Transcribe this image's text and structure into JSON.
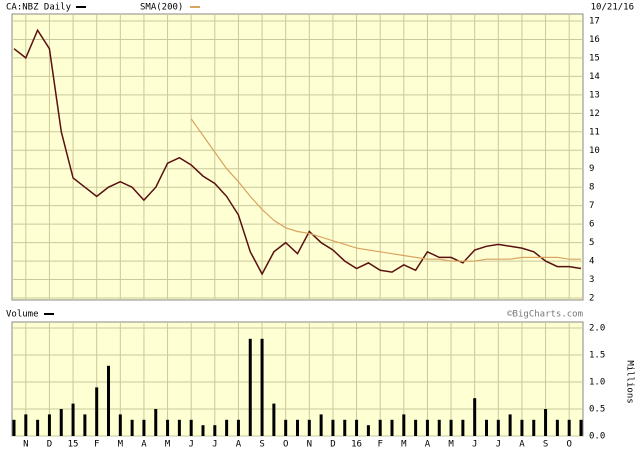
{
  "chart_data": [
    {
      "type": "line",
      "date": "10/21/16",
      "ylim": [
        2,
        17
      ],
      "yticks": [
        2,
        3,
        4,
        5,
        6,
        7,
        8,
        9,
        10,
        11,
        12,
        13,
        14,
        15,
        16,
        17
      ],
      "grid": true,
      "series": [
        {
          "name": "CA:NBZ Daily",
          "color": "#5a1010",
          "values": [
            15.5,
            15.0,
            16.5,
            15.5,
            11.0,
            8.5,
            8.0,
            7.5,
            8.0,
            8.3,
            8.0,
            7.3,
            8.0,
            9.3,
            9.6,
            9.2,
            8.6,
            8.2,
            7.5,
            6.5,
            4.5,
            3.3,
            4.5,
            5.0,
            4.4,
            5.6,
            5.0,
            4.6,
            4.0,
            3.6,
            3.9,
            3.5,
            3.4,
            3.8,
            3.5,
            4.5,
            4.2,
            4.2,
            3.9,
            4.6,
            4.8,
            4.9,
            4.8,
            4.7,
            4.5,
            4.0,
            3.7,
            3.7,
            3.6
          ]
        },
        {
          "name": "SMA(200)",
          "color": "#d9a460",
          "values": [
            null,
            null,
            null,
            null,
            null,
            null,
            null,
            null,
            null,
            null,
            null,
            null,
            null,
            null,
            null,
            11.7,
            10.8,
            9.9,
            9.0,
            8.3,
            7.5,
            6.8,
            6.2,
            5.8,
            5.6,
            5.5,
            5.3,
            5.1,
            4.9,
            4.7,
            4.6,
            4.5,
            4.4,
            4.3,
            4.2,
            4.1,
            4.1,
            4.0,
            4.0,
            4.0,
            4.1,
            4.1,
            4.1,
            4.2,
            4.2,
            4.2,
            4.2,
            4.1,
            4.1
          ]
        }
      ]
    },
    {
      "type": "bar",
      "title": "Volume",
      "source": "©BigCharts.com",
      "y_label": "Millions",
      "color": "#000000",
      "ylim": [
        0,
        2
      ],
      "yticks": [
        {
          "value": 0,
          "label": "0.0"
        },
        {
          "value": 0.5,
          "label": "0.5"
        },
        {
          "value": 1,
          "label": "1.0"
        },
        {
          "value": 1.5,
          "label": "1.5"
        },
        {
          "value": 2,
          "label": "2.0"
        }
      ],
      "grid": true,
      "categories": [
        null,
        "N",
        null,
        "D",
        null,
        "15",
        null,
        "F",
        null,
        "M",
        null,
        "A",
        null,
        "M",
        null,
        "J",
        null,
        "J",
        null,
        "A",
        null,
        "S",
        null,
        "O",
        null,
        "N",
        null,
        "D",
        null,
        "16",
        null,
        "F",
        null,
        "M",
        null,
        "A",
        null,
        "M",
        null,
        "J",
        null,
        "J",
        null,
        "A",
        null,
        "S",
        null,
        "O",
        null
      ],
      "values": [
        0.3,
        0.4,
        0.3,
        0.4,
        0.5,
        0.6,
        0.4,
        0.9,
        1.3,
        0.4,
        0.3,
        0.3,
        0.5,
        0.3,
        0.3,
        0.3,
        0.2,
        0.2,
        0.3,
        0.3,
        1.8,
        1.8,
        0.6,
        0.3,
        0.3,
        0.3,
        0.4,
        0.3,
        0.3,
        0.3,
        0.2,
        0.3,
        0.3,
        0.4,
        0.3,
        0.3,
        0.3,
        0.3,
        0.3,
        0.7,
        0.3,
        0.3,
        0.4,
        0.3,
        0.3,
        0.5,
        0.3,
        0.3,
        0.3
      ]
    }
  ]
}
